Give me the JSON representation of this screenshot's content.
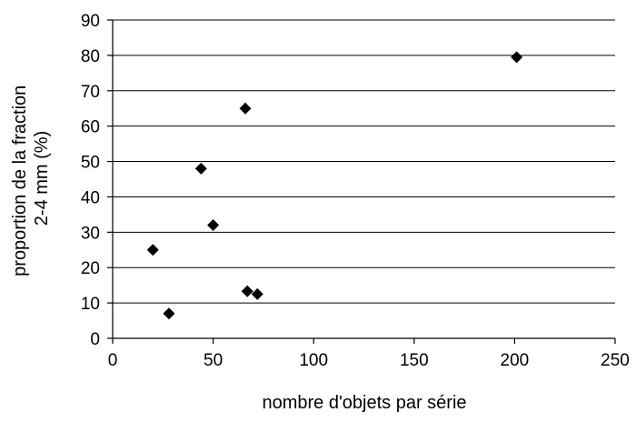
{
  "chart_data": {
    "type": "scatter",
    "title": "",
    "xlabel": "nombre d'objets par série",
    "ylabel_lines": [
      "proportion de la fraction",
      "2-4 mm (%)"
    ],
    "xlim": [
      0,
      250
    ],
    "ylim": [
      0,
      90
    ],
    "x_ticks": [
      0,
      50,
      100,
      150,
      200,
      250
    ],
    "y_ticks": [
      0,
      10,
      20,
      30,
      40,
      50,
      60,
      70,
      80,
      90
    ],
    "grid": "horizontal",
    "legend": "none",
    "marker": "diamond",
    "marker_color": "#000000",
    "series": [
      {
        "points": [
          {
            "x": 20,
            "y": 25
          },
          {
            "x": 28,
            "y": 7
          },
          {
            "x": 44,
            "y": 48
          },
          {
            "x": 50,
            "y": 32
          },
          {
            "x": 66,
            "y": 65
          },
          {
            "x": 67,
            "y": 13.3
          },
          {
            "x": 72,
            "y": 12.5
          },
          {
            "x": 201,
            "y": 79.5
          }
        ]
      }
    ]
  }
}
